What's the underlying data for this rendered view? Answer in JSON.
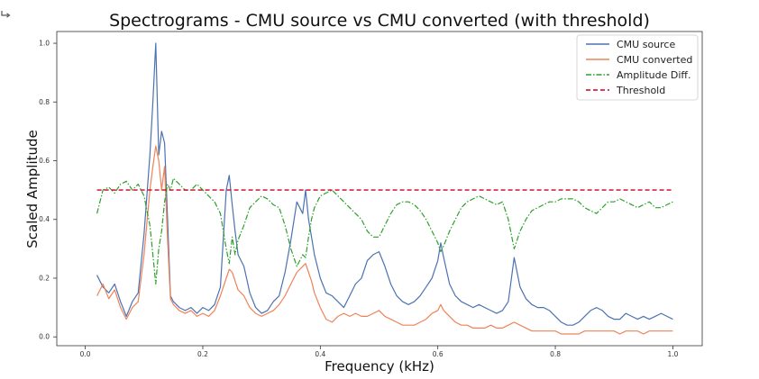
{
  "notebook": {
    "output_icon": "output-arrow-icon"
  },
  "chart_data": {
    "type": "line",
    "title": "Spectrograms - CMU source vs CMU converted (with threshold)",
    "xlabel": "Frequency (kHz)",
    "ylabel": "Scaled Amplitude",
    "xlim": [
      -0.0485,
      1.05
    ],
    "ylim": [
      -0.03,
      1.04
    ],
    "xticks": [
      0.0,
      0.2,
      0.4,
      0.6,
      0.8,
      1.0
    ],
    "xtick_labels": [
      "0.0",
      "0.2",
      "0.4",
      "0.6",
      "0.8",
      "1.0"
    ],
    "yticks": [
      0.0,
      0.2,
      0.4,
      0.6,
      0.8,
      1.0
    ],
    "ytick_labels": [
      "0.0",
      "0.2",
      "0.4",
      "0.6",
      "0.8",
      "1.0"
    ],
    "grid": false,
    "legend_position": "top-right",
    "series": [
      {
        "name": "CMU source",
        "color": "#4c72b0",
        "style": "solid",
        "x": [
          0.02,
          0.03,
          0.04,
          0.05,
          0.06,
          0.07,
          0.08,
          0.09,
          0.1,
          0.11,
          0.115,
          0.12,
          0.125,
          0.13,
          0.135,
          0.14,
          0.145,
          0.15,
          0.16,
          0.17,
          0.18,
          0.19,
          0.2,
          0.21,
          0.22,
          0.23,
          0.24,
          0.245,
          0.25,
          0.255,
          0.26,
          0.27,
          0.28,
          0.29,
          0.3,
          0.31,
          0.32,
          0.33,
          0.34,
          0.35,
          0.36,
          0.37,
          0.375,
          0.38,
          0.385,
          0.39,
          0.4,
          0.41,
          0.42,
          0.43,
          0.44,
          0.45,
          0.46,
          0.47,
          0.48,
          0.49,
          0.5,
          0.51,
          0.52,
          0.53,
          0.54,
          0.55,
          0.56,
          0.57,
          0.58,
          0.59,
          0.6,
          0.605,
          0.61,
          0.62,
          0.63,
          0.64,
          0.65,
          0.66,
          0.67,
          0.68,
          0.69,
          0.7,
          0.71,
          0.72,
          0.73,
          0.74,
          0.75,
          0.76,
          0.77,
          0.78,
          0.79,
          0.8,
          0.81,
          0.82,
          0.83,
          0.84,
          0.85,
          0.86,
          0.87,
          0.88,
          0.89,
          0.9,
          0.91,
          0.92,
          0.93,
          0.94,
          0.95,
          0.96,
          0.97,
          0.98,
          0.99,
          1.0
        ],
        "y": [
          0.21,
          0.17,
          0.15,
          0.18,
          0.12,
          0.07,
          0.12,
          0.15,
          0.35,
          0.62,
          0.8,
          1.0,
          0.62,
          0.7,
          0.66,
          0.4,
          0.14,
          0.12,
          0.1,
          0.09,
          0.1,
          0.08,
          0.1,
          0.09,
          0.11,
          0.17,
          0.5,
          0.55,
          0.45,
          0.36,
          0.28,
          0.24,
          0.15,
          0.1,
          0.08,
          0.09,
          0.12,
          0.14,
          0.22,
          0.33,
          0.46,
          0.42,
          0.5,
          0.4,
          0.34,
          0.28,
          0.2,
          0.15,
          0.14,
          0.12,
          0.1,
          0.14,
          0.18,
          0.2,
          0.26,
          0.28,
          0.29,
          0.24,
          0.18,
          0.14,
          0.12,
          0.11,
          0.12,
          0.14,
          0.17,
          0.2,
          0.26,
          0.32,
          0.27,
          0.18,
          0.14,
          0.12,
          0.11,
          0.1,
          0.11,
          0.1,
          0.09,
          0.08,
          0.09,
          0.12,
          0.27,
          0.17,
          0.13,
          0.11,
          0.1,
          0.1,
          0.09,
          0.07,
          0.05,
          0.04,
          0.04,
          0.05,
          0.07,
          0.09,
          0.1,
          0.09,
          0.07,
          0.06,
          0.06,
          0.08,
          0.07,
          0.06,
          0.07,
          0.06,
          0.07,
          0.08,
          0.07,
          0.06
        ]
      },
      {
        "name": "CMU converted",
        "color": "#ee8357",
        "style": "solid",
        "x": [
          0.02,
          0.03,
          0.04,
          0.05,
          0.06,
          0.07,
          0.08,
          0.09,
          0.1,
          0.11,
          0.115,
          0.12,
          0.125,
          0.13,
          0.135,
          0.14,
          0.145,
          0.15,
          0.16,
          0.17,
          0.18,
          0.19,
          0.2,
          0.21,
          0.22,
          0.23,
          0.24,
          0.245,
          0.25,
          0.255,
          0.26,
          0.27,
          0.28,
          0.29,
          0.3,
          0.31,
          0.32,
          0.33,
          0.34,
          0.35,
          0.36,
          0.37,
          0.375,
          0.38,
          0.385,
          0.39,
          0.4,
          0.41,
          0.42,
          0.43,
          0.44,
          0.45,
          0.46,
          0.47,
          0.48,
          0.49,
          0.5,
          0.51,
          0.52,
          0.53,
          0.54,
          0.55,
          0.56,
          0.57,
          0.58,
          0.59,
          0.6,
          0.605,
          0.61,
          0.62,
          0.63,
          0.64,
          0.65,
          0.66,
          0.67,
          0.68,
          0.69,
          0.7,
          0.71,
          0.72,
          0.73,
          0.74,
          0.75,
          0.76,
          0.77,
          0.78,
          0.79,
          0.8,
          0.81,
          0.82,
          0.83,
          0.84,
          0.85,
          0.86,
          0.87,
          0.88,
          0.89,
          0.9,
          0.91,
          0.92,
          0.93,
          0.94,
          0.95,
          0.96,
          0.97,
          0.98,
          0.99,
          1.0
        ],
        "y": [
          0.14,
          0.18,
          0.13,
          0.16,
          0.1,
          0.06,
          0.1,
          0.12,
          0.28,
          0.5,
          0.58,
          0.65,
          0.6,
          0.5,
          0.58,
          0.33,
          0.13,
          0.11,
          0.09,
          0.08,
          0.09,
          0.07,
          0.08,
          0.07,
          0.09,
          0.14,
          0.2,
          0.23,
          0.22,
          0.19,
          0.16,
          0.14,
          0.1,
          0.08,
          0.07,
          0.08,
          0.09,
          0.11,
          0.14,
          0.18,
          0.22,
          0.24,
          0.25,
          0.22,
          0.19,
          0.15,
          0.1,
          0.06,
          0.05,
          0.07,
          0.08,
          0.07,
          0.08,
          0.07,
          0.07,
          0.08,
          0.09,
          0.07,
          0.06,
          0.05,
          0.04,
          0.04,
          0.04,
          0.05,
          0.06,
          0.08,
          0.09,
          0.11,
          0.09,
          0.07,
          0.05,
          0.04,
          0.04,
          0.03,
          0.03,
          0.03,
          0.04,
          0.03,
          0.03,
          0.04,
          0.05,
          0.04,
          0.03,
          0.02,
          0.02,
          0.02,
          0.02,
          0.02,
          0.01,
          0.01,
          0.01,
          0.01,
          0.02,
          0.02,
          0.02,
          0.02,
          0.02,
          0.02,
          0.01,
          0.02,
          0.02,
          0.02,
          0.01,
          0.02,
          0.02,
          0.02,
          0.02,
          0.02
        ]
      },
      {
        "name": "Amplitude Diff.",
        "color": "#2ca02c",
        "style": "dashdot",
        "x": [
          0.02,
          0.03,
          0.04,
          0.05,
          0.06,
          0.07,
          0.08,
          0.09,
          0.1,
          0.11,
          0.115,
          0.12,
          0.125,
          0.13,
          0.135,
          0.14,
          0.145,
          0.15,
          0.16,
          0.17,
          0.18,
          0.19,
          0.2,
          0.21,
          0.22,
          0.23,
          0.24,
          0.245,
          0.25,
          0.255,
          0.26,
          0.27,
          0.28,
          0.29,
          0.3,
          0.31,
          0.32,
          0.33,
          0.34,
          0.35,
          0.36,
          0.37,
          0.375,
          0.38,
          0.385,
          0.39,
          0.4,
          0.41,
          0.42,
          0.43,
          0.44,
          0.45,
          0.46,
          0.47,
          0.48,
          0.49,
          0.5,
          0.51,
          0.52,
          0.53,
          0.54,
          0.55,
          0.56,
          0.57,
          0.58,
          0.59,
          0.6,
          0.605,
          0.61,
          0.62,
          0.63,
          0.64,
          0.65,
          0.66,
          0.67,
          0.68,
          0.69,
          0.7,
          0.71,
          0.72,
          0.73,
          0.74,
          0.75,
          0.76,
          0.77,
          0.78,
          0.79,
          0.8,
          0.81,
          0.82,
          0.83,
          0.84,
          0.85,
          0.86,
          0.87,
          0.88,
          0.89,
          0.9,
          0.91,
          0.92,
          0.93,
          0.94,
          0.95,
          0.96,
          0.97,
          0.98,
          0.99,
          1.0
        ],
        "y": [
          0.42,
          0.5,
          0.51,
          0.49,
          0.52,
          0.53,
          0.5,
          0.52,
          0.48,
          0.38,
          0.28,
          0.18,
          0.3,
          0.36,
          0.46,
          0.52,
          0.5,
          0.54,
          0.52,
          0.5,
          0.5,
          0.52,
          0.5,
          0.48,
          0.46,
          0.42,
          0.3,
          0.25,
          0.34,
          0.28,
          0.33,
          0.38,
          0.44,
          0.46,
          0.48,
          0.47,
          0.45,
          0.44,
          0.38,
          0.3,
          0.24,
          0.28,
          0.27,
          0.34,
          0.4,
          0.44,
          0.48,
          0.49,
          0.5,
          0.48,
          0.46,
          0.44,
          0.42,
          0.4,
          0.36,
          0.34,
          0.34,
          0.38,
          0.42,
          0.45,
          0.46,
          0.46,
          0.45,
          0.43,
          0.4,
          0.36,
          0.32,
          0.29,
          0.31,
          0.36,
          0.4,
          0.44,
          0.46,
          0.47,
          0.48,
          0.47,
          0.46,
          0.45,
          0.46,
          0.4,
          0.3,
          0.36,
          0.4,
          0.43,
          0.44,
          0.45,
          0.46,
          0.46,
          0.47,
          0.47,
          0.47,
          0.46,
          0.44,
          0.43,
          0.42,
          0.44,
          0.46,
          0.46,
          0.47,
          0.46,
          0.45,
          0.44,
          0.45,
          0.46,
          0.44,
          0.44,
          0.45,
          0.46
        ]
      },
      {
        "name": "Threshold",
        "color": "#cc0022",
        "style": "dashed",
        "x": [
          0.02,
          1.0
        ],
        "y": [
          0.5,
          0.5
        ]
      }
    ]
  }
}
